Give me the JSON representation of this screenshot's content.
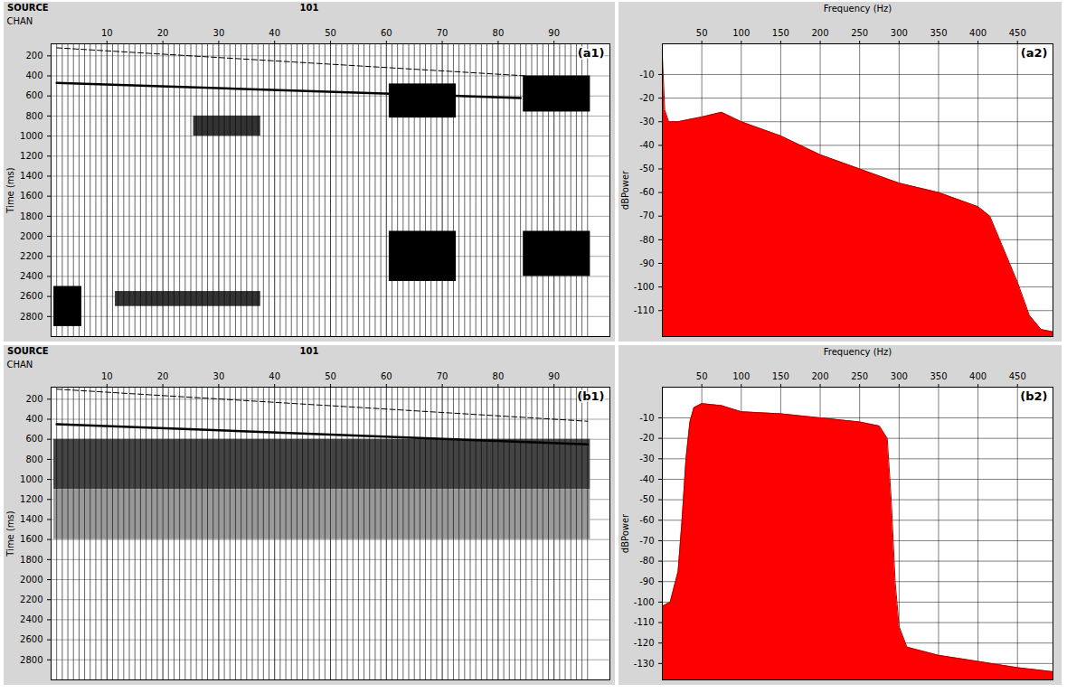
{
  "chart_data": [
    {
      "type": "seismic",
      "panel": "(a1)",
      "header": [
        "SOURCE",
        "101"
      ],
      "x_label": "CHAN",
      "y_label": "Time (ms)",
      "xlim": [
        0,
        100
      ],
      "xticks": [
        10,
        20,
        30,
        40,
        50,
        60,
        70,
        80,
        90
      ],
      "ylim": [
        80,
        3000
      ],
      "yticks": [
        200,
        400,
        600,
        800,
        1000,
        1200,
        1400,
        1600,
        1800,
        2000,
        2200,
        2400,
        2600,
        2800
      ],
      "grid": true,
      "channels": [
        1,
        2,
        3,
        4,
        5,
        6,
        7,
        8,
        9,
        10,
        11,
        12,
        13,
        14,
        15,
        16,
        17,
        18,
        19,
        20,
        21,
        22,
        23,
        24,
        25,
        26,
        27,
        28,
        29,
        30,
        31,
        32,
        33,
        34,
        35,
        36,
        37,
        38,
        39,
        40,
        41,
        42,
        43,
        44,
        45,
        46,
        47,
        48,
        49,
        50,
        51,
        52,
        53,
        54,
        55,
        56,
        57,
        58,
        59,
        60,
        61,
        62,
        63,
        64,
        65,
        66,
        67,
        68,
        69,
        70,
        71,
        72,
        73,
        74,
        75,
        76,
        77,
        78,
        79,
        80,
        81,
        82,
        83,
        84,
        85,
        86,
        87,
        88,
        89,
        90,
        91,
        92,
        93,
        94,
        95,
        96
      ],
      "first_break": {
        "channels": [
          1,
          85
        ],
        "time": [
          120,
          400
        ],
        "line_style": "dashed"
      },
      "reflection_onset": {
        "channels": [
          1,
          84
        ],
        "time": [
          470,
          620
        ],
        "line_style": "solid"
      },
      "energy_zones": [
        {
          "channels": [
            61,
            72
          ],
          "time": [
            480,
            820
          ],
          "color": "#000000"
        },
        {
          "channels": [
            61,
            72
          ],
          "time": [
            1950,
            2450
          ],
          "color": "#000000"
        },
        {
          "channels": [
            85,
            96
          ],
          "time": [
            400,
            760
          ],
          "color": "#000000"
        },
        {
          "channels": [
            85,
            96
          ],
          "time": [
            1950,
            2400
          ],
          "color": "#000000"
        },
        {
          "channels": [
            26,
            37
          ],
          "time": [
            800,
            1000
          ],
          "color": "#333333"
        },
        {
          "channels": [
            12,
            37
          ],
          "time": [
            2550,
            2700
          ],
          "color": "#333333"
        },
        {
          "channels": [
            1,
            5
          ],
          "time": [
            2500,
            2900
          ],
          "color": "#000000"
        }
      ]
    },
    {
      "type": "area",
      "panel": "(a2)",
      "x_label": "Frequency (Hz)",
      "y_label": "dBPower",
      "xlim": [
        0,
        495
      ],
      "xticks": [
        50,
        100,
        150,
        200,
        250,
        300,
        350,
        400,
        450
      ],
      "ylim": [
        -121,
        3
      ],
      "yticks": [
        -10,
        -20,
        -30,
        -40,
        -50,
        -60,
        -70,
        -80,
        -90,
        -100,
        -110
      ],
      "grid": true,
      "color": "#ff0000",
      "x": [
        0,
        3,
        8,
        20,
        35,
        50,
        75,
        100,
        150,
        200,
        250,
        300,
        350,
        400,
        415,
        430,
        450,
        465,
        480,
        495
      ],
      "values": [
        -2,
        -25,
        -30,
        -30,
        -29,
        -28,
        -26,
        -30,
        -36,
        -44,
        -50,
        -56,
        -60,
        -66,
        -70,
        -82,
        -98,
        -112,
        -118,
        -119
      ]
    },
    {
      "type": "seismic",
      "panel": "(b1)",
      "header": [
        "SOURCE",
        "101"
      ],
      "x_label": "CHAN",
      "y_label": "Time (ms)",
      "xlim": [
        0,
        100
      ],
      "xticks": [
        10,
        20,
        30,
        40,
        50,
        60,
        70,
        80,
        90
      ],
      "ylim": [
        80,
        3000
      ],
      "yticks": [
        200,
        400,
        600,
        800,
        1000,
        1200,
        1400,
        1600,
        1800,
        2000,
        2200,
        2400,
        2600,
        2800
      ],
      "grid": true,
      "channels": [
        1,
        2,
        3,
        4,
        5,
        6,
        7,
        8,
        9,
        10,
        11,
        12,
        13,
        14,
        15,
        16,
        17,
        18,
        19,
        20,
        21,
        22,
        23,
        24,
        25,
        26,
        27,
        28,
        29,
        30,
        31,
        32,
        33,
        34,
        35,
        36,
        37,
        38,
        39,
        40,
        41,
        42,
        43,
        44,
        45,
        46,
        47,
        48,
        49,
        50,
        51,
        52,
        53,
        54,
        55,
        56,
        57,
        58,
        59,
        60,
        61,
        62,
        63,
        64,
        65,
        66,
        67,
        68,
        69,
        70,
        71,
        72,
        73,
        74,
        75,
        76,
        77,
        78,
        79,
        80,
        81,
        82,
        83,
        84,
        85,
        86,
        87,
        88,
        89,
        90,
        91,
        92,
        93,
        94,
        95,
        96
      ],
      "first_break": {
        "channels": [
          1,
          96
        ],
        "time": [
          100,
          420
        ],
        "line_style": "dashed"
      },
      "reflection_onset": {
        "channels": [
          1,
          96
        ],
        "time": [
          450,
          650
        ],
        "line_style": "solid"
      },
      "energy_zones": [
        {
          "channels": [
            1,
            96
          ],
          "time": [
            600,
            1100
          ],
          "color": "#444444"
        },
        {
          "channels": [
            1,
            96
          ],
          "time": [
            1100,
            1600
          ],
          "color": "#9a9a9a"
        }
      ]
    },
    {
      "type": "area",
      "panel": "(b2)",
      "x_label": "Frequency (Hz)",
      "y_label": "dBPower",
      "xlim": [
        0,
        495
      ],
      "xticks": [
        50,
        100,
        150,
        200,
        250,
        300,
        350,
        400,
        450
      ],
      "ylim": [
        -138,
        5
      ],
      "yticks": [
        -10,
        -20,
        -30,
        -40,
        -50,
        -60,
        -70,
        -80,
        -90,
        -100,
        -110,
        -120,
        -130
      ],
      "grid": true,
      "color": "#ff0000",
      "x": [
        0,
        10,
        20,
        25,
        30,
        35,
        40,
        50,
        75,
        100,
        150,
        200,
        250,
        275,
        285,
        290,
        295,
        300,
        310,
        350,
        400,
        450,
        495
      ],
      "values": [
        -102,
        -100,
        -85,
        -60,
        -30,
        -12,
        -5,
        -3,
        -4,
        -7,
        -8,
        -10,
        -12,
        -14,
        -20,
        -50,
        -90,
        -112,
        -122,
        -126,
        -129,
        -132,
        -134
      ]
    }
  ]
}
